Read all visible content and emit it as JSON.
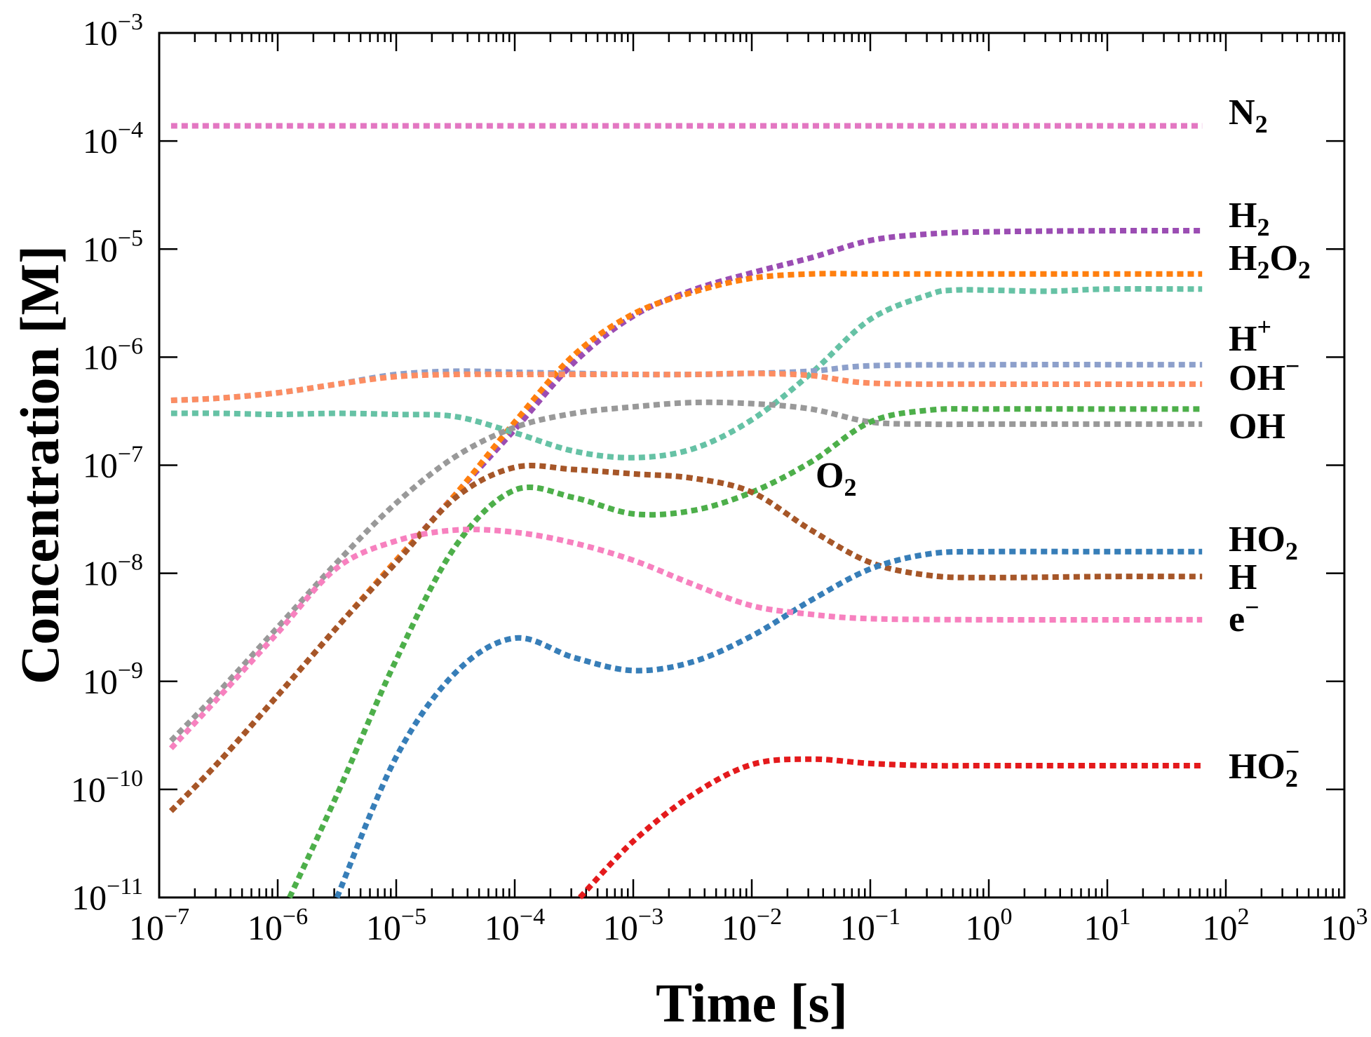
{
  "chart_data": {
    "type": "line",
    "title": "",
    "xlabel": "Time [s]",
    "ylabel": "Concentration [M]",
    "xscale": "log",
    "yscale": "log",
    "xlim": [
      1e-07,
      1000
    ],
    "ylim": [
      1e-11,
      0.001
    ],
    "x_ticks": [
      {
        "exp": -7,
        "base": "10",
        "sup": "−7"
      },
      {
        "exp": -6,
        "base": "10",
        "sup": "−6"
      },
      {
        "exp": -5,
        "base": "10",
        "sup": "−5"
      },
      {
        "exp": -4,
        "base": "10",
        "sup": "−4"
      },
      {
        "exp": -3,
        "base": "10",
        "sup": "−3"
      },
      {
        "exp": -2,
        "base": "10",
        "sup": "−2"
      },
      {
        "exp": -1,
        "base": "10",
        "sup": "−1"
      },
      {
        "exp": 0,
        "base": "10",
        "sup": "0"
      },
      {
        "exp": 1,
        "base": "10",
        "sup": "1"
      },
      {
        "exp": 2,
        "base": "10",
        "sup": "2"
      },
      {
        "exp": 3,
        "base": "10",
        "sup": "3"
      }
    ],
    "y_ticks": [
      {
        "exp": -11,
        "base": "10",
        "sup": "−11"
      },
      {
        "exp": -10,
        "base": "10",
        "sup": "−10"
      },
      {
        "exp": -9,
        "base": "10",
        "sup": "−9"
      },
      {
        "exp": -8,
        "base": "10",
        "sup": "−8"
      },
      {
        "exp": -7,
        "base": "10",
        "sup": "−7"
      },
      {
        "exp": -6,
        "base": "10",
        "sup": "−6"
      },
      {
        "exp": -5,
        "base": "10",
        "sup": "−5"
      },
      {
        "exp": -4,
        "base": "10",
        "sup": "−4"
      },
      {
        "exp": -3,
        "base": "10",
        "sup": "−3"
      }
    ],
    "series": [
      {
        "id": "n2",
        "main": "N",
        "sub": "2",
        "sup": "",
        "color": "#e377c2",
        "points": [
          [
            -6.9,
            -3.86
          ],
          [
            1.8,
            -3.86
          ]
        ]
      },
      {
        "id": "h2",
        "main": "H",
        "sub": "2",
        "sup": "",
        "color": "#9b4db3",
        "points": [
          [
            -6.9,
            -10.2
          ],
          [
            -6.5,
            -9.75
          ],
          [
            -6.0,
            -9.13
          ],
          [
            -5.5,
            -8.5
          ],
          [
            -5.0,
            -7.88
          ],
          [
            -4.5,
            -7.27
          ],
          [
            -4.0,
            -6.67
          ],
          [
            -3.5,
            -6.05
          ],
          [
            -3.0,
            -5.62
          ],
          [
            -2.5,
            -5.38
          ],
          [
            -2.0,
            -5.22
          ],
          [
            -1.5,
            -5.08
          ],
          [
            -1.0,
            -4.92
          ],
          [
            -0.5,
            -4.86
          ],
          [
            0,
            -4.84
          ],
          [
            1,
            -4.83
          ],
          [
            1.8,
            -4.83
          ]
        ]
      },
      {
        "id": "h2o2",
        "main": "H",
        "sub": "2",
        "main2": "O",
        "sub2": "2",
        "sup": "",
        "color": "#ff7f0e",
        "points": [
          [
            -6.9,
            -10.2
          ],
          [
            -6.5,
            -9.75
          ],
          [
            -6.0,
            -9.13
          ],
          [
            -5.5,
            -8.5
          ],
          [
            -5.0,
            -7.88
          ],
          [
            -4.5,
            -7.27
          ],
          [
            -4.0,
            -6.6
          ],
          [
            -3.5,
            -5.98
          ],
          [
            -3.0,
            -5.6
          ],
          [
            -2.5,
            -5.4
          ],
          [
            -2.0,
            -5.27
          ],
          [
            -1.5,
            -5.23
          ],
          [
            -1.0,
            -5.23
          ],
          [
            -0.5,
            -5.23
          ],
          [
            0,
            -5.23
          ],
          [
            1,
            -5.23
          ],
          [
            1.8,
            -5.23
          ]
        ]
      },
      {
        "id": "o2",
        "main": "O",
        "sub": "2",
        "sup": "",
        "color": "#66c2a5",
        "points": [
          [
            -6.9,
            -6.52
          ],
          [
            -6.5,
            -6.52
          ],
          [
            -6.0,
            -6.53
          ],
          [
            -5.5,
            -6.52
          ],
          [
            -5.0,
            -6.53
          ],
          [
            -4.5,
            -6.55
          ],
          [
            -4.0,
            -6.7
          ],
          [
            -3.5,
            -6.87
          ],
          [
            -3.0,
            -6.93
          ],
          [
            -2.5,
            -6.85
          ],
          [
            -2.0,
            -6.58
          ],
          [
            -1.5,
            -6.15
          ],
          [
            -1.0,
            -5.65
          ],
          [
            -0.5,
            -5.42
          ],
          [
            -0.3,
            -5.38
          ],
          [
            0,
            -5.38
          ],
          [
            0.5,
            -5.39
          ],
          [
            1,
            -5.37
          ],
          [
            1.8,
            -5.37
          ]
        ]
      },
      {
        "id": "hplus",
        "main": "H",
        "sub": "",
        "sup": "+",
        "color": "#8da0cb",
        "points": [
          [
            -6.9,
            -6.4
          ],
          [
            -6.5,
            -6.38
          ],
          [
            -6.0,
            -6.33
          ],
          [
            -5.5,
            -6.25
          ],
          [
            -5.0,
            -6.16
          ],
          [
            -4.5,
            -6.13
          ],
          [
            -4.0,
            -6.14
          ],
          [
            -3.5,
            -6.15
          ],
          [
            -3.0,
            -6.16
          ],
          [
            -2.5,
            -6.16
          ],
          [
            -2.0,
            -6.15
          ],
          [
            -1.5,
            -6.13
          ],
          [
            -1.0,
            -6.08
          ],
          [
            0,
            -6.07
          ],
          [
            1.8,
            -6.07
          ]
        ]
      },
      {
        "id": "ohminus",
        "main": "OH",
        "sub": "",
        "sup": "−",
        "color": "#fc8d62",
        "points": [
          [
            -6.9,
            -6.4
          ],
          [
            -6.5,
            -6.38
          ],
          [
            -6.0,
            -6.33
          ],
          [
            -5.5,
            -6.25
          ],
          [
            -5.0,
            -6.18
          ],
          [
            -4.5,
            -6.16
          ],
          [
            -4.0,
            -6.16
          ],
          [
            -3.5,
            -6.16
          ],
          [
            -3.0,
            -6.16
          ],
          [
            -2.5,
            -6.16
          ],
          [
            -2.0,
            -6.15
          ],
          [
            -1.5,
            -6.17
          ],
          [
            -1.0,
            -6.24
          ],
          [
            0,
            -6.25
          ],
          [
            1.8,
            -6.25
          ]
        ]
      },
      {
        "id": "oh",
        "main": "OH",
        "sub": "",
        "sup": "",
        "color": "#999999",
        "points": [
          [
            -6.9,
            -9.55
          ],
          [
            -6.5,
            -9.1
          ],
          [
            -6.0,
            -8.5
          ],
          [
            -5.5,
            -7.9
          ],
          [
            -5.0,
            -7.35
          ],
          [
            -4.5,
            -6.92
          ],
          [
            -4.0,
            -6.65
          ],
          [
            -3.5,
            -6.52
          ],
          [
            -3.0,
            -6.46
          ],
          [
            -2.5,
            -6.42
          ],
          [
            -2.0,
            -6.43
          ],
          [
            -1.5,
            -6.48
          ],
          [
            -1.0,
            -6.6
          ],
          [
            -0.5,
            -6.62
          ],
          [
            0,
            -6.62
          ],
          [
            1,
            -6.62
          ],
          [
            1.8,
            -6.62
          ]
        ]
      },
      {
        "id": "o2b",
        "main": "O",
        "sub": "2",
        "sup": "",
        "color": "#4daf4a",
        "points": [
          [
            -5.9,
            -11.0
          ],
          [
            -5.5,
            -10.05
          ],
          [
            -5.0,
            -8.8
          ],
          [
            -4.5,
            -7.75
          ],
          [
            -4.0,
            -7.23
          ],
          [
            -3.5,
            -7.3
          ],
          [
            -3.0,
            -7.45
          ],
          [
            -2.5,
            -7.42
          ],
          [
            -2.0,
            -7.25
          ],
          [
            -1.5,
            -6.97
          ],
          [
            -1.0,
            -6.6
          ],
          [
            -0.5,
            -6.49
          ],
          [
            0,
            -6.48
          ],
          [
            1,
            -6.48
          ],
          [
            1.8,
            -6.48
          ]
        ]
      },
      {
        "id": "hradical",
        "main": "H",
        "sub": "",
        "sup": "",
        "color": "#a65628",
        "points": [
          [
            -6.9,
            -10.2
          ],
          [
            -6.5,
            -9.75
          ],
          [
            -6.0,
            -9.13
          ],
          [
            -5.5,
            -8.5
          ],
          [
            -5.0,
            -7.9
          ],
          [
            -4.5,
            -7.3
          ],
          [
            -4.0,
            -7.02
          ],
          [
            -3.5,
            -7.04
          ],
          [
            -3.0,
            -7.08
          ],
          [
            -2.5,
            -7.12
          ],
          [
            -2.0,
            -7.25
          ],
          [
            -1.5,
            -7.6
          ],
          [
            -1.0,
            -7.9
          ],
          [
            -0.5,
            -8.02
          ],
          [
            0,
            -8.04
          ],
          [
            1,
            -8.03
          ],
          [
            1.8,
            -8.03
          ]
        ]
      },
      {
        "id": "ho2",
        "main": "HO",
        "sub": "2",
        "sup": "",
        "color": "#377eb8",
        "points": [
          [
            -5.5,
            -11.0
          ],
          [
            -5.0,
            -9.7
          ],
          [
            -4.5,
            -8.92
          ],
          [
            -4.0,
            -8.6
          ],
          [
            -3.5,
            -8.78
          ],
          [
            -3.0,
            -8.9
          ],
          [
            -2.5,
            -8.82
          ],
          [
            -2.0,
            -8.58
          ],
          [
            -1.5,
            -8.25
          ],
          [
            -1.0,
            -7.96
          ],
          [
            -0.5,
            -7.82
          ],
          [
            0,
            -7.8
          ],
          [
            1,
            -7.8
          ],
          [
            1.8,
            -7.8
          ]
        ]
      },
      {
        "id": "eaq",
        "main": "e",
        "sub": "",
        "sup": "−",
        "color": "#f781bf",
        "points": [
          [
            -6.9,
            -9.62
          ],
          [
            -6.5,
            -9.15
          ],
          [
            -6.0,
            -8.55
          ],
          [
            -5.5,
            -7.95
          ],
          [
            -5.0,
            -7.7
          ],
          [
            -4.5,
            -7.6
          ],
          [
            -4.0,
            -7.62
          ],
          [
            -3.5,
            -7.72
          ],
          [
            -3.0,
            -7.88
          ],
          [
            -2.5,
            -8.1
          ],
          [
            -2.0,
            -8.3
          ],
          [
            -1.5,
            -8.38
          ],
          [
            -1.0,
            -8.42
          ],
          [
            0,
            -8.43
          ],
          [
            1.8,
            -8.43
          ]
        ]
      },
      {
        "id": "ho2minus",
        "main": "HO",
        "sub": "2",
        "sup": "−",
        "color": "#e41a1c",
        "points": [
          [
            -3.45,
            -11.0
          ],
          [
            -3.0,
            -10.48
          ],
          [
            -2.5,
            -10.05
          ],
          [
            -2.0,
            -9.77
          ],
          [
            -1.5,
            -9.72
          ],
          [
            -1.0,
            -9.76
          ],
          [
            -0.5,
            -9.78
          ],
          [
            0,
            -9.78
          ],
          [
            1,
            -9.78
          ],
          [
            1.8,
            -9.78
          ]
        ]
      }
    ],
    "inline_label": {
      "main": "O",
      "sub": "2"
    }
  }
}
